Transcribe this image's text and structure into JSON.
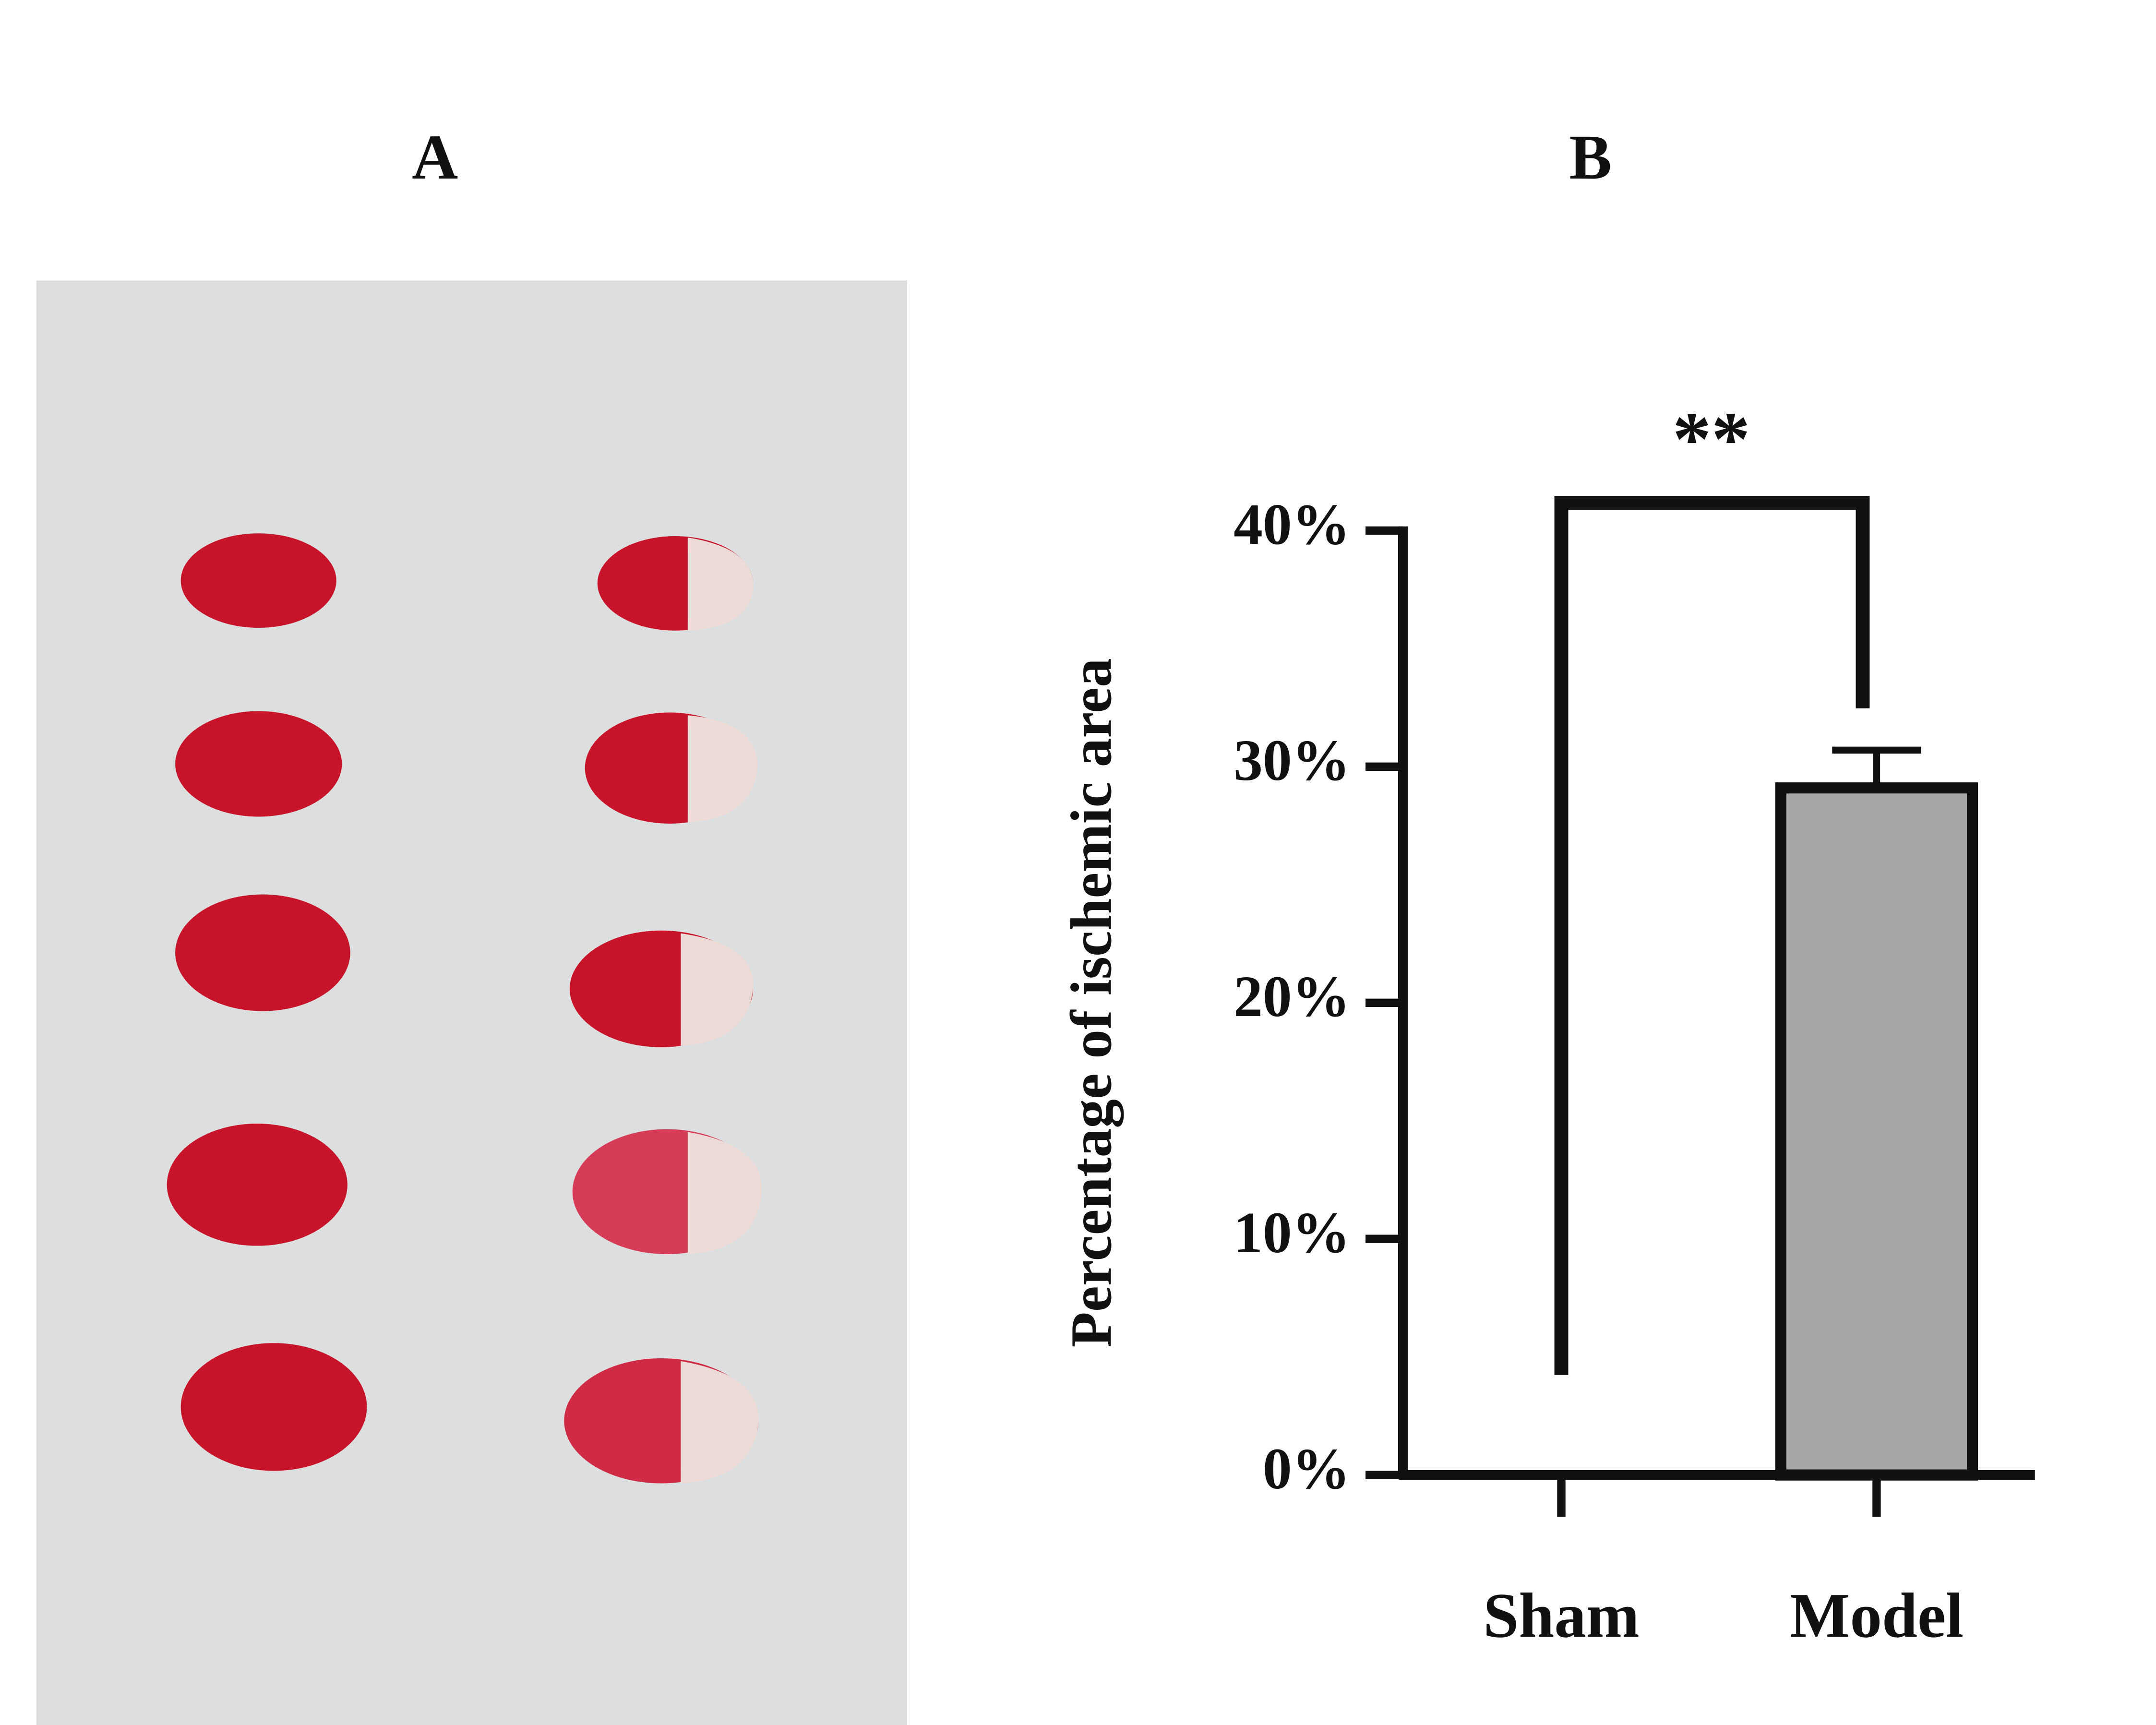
{
  "panel_labels": [
    "A",
    "B"
  ],
  "chart_data": {
    "type": "bar",
    "y_label": "Percentage of ischemic area",
    "categories": [
      "Sham",
      "Model"
    ],
    "values": [
      0,
      29.1
    ],
    "errors": [
      null,
      1.6
    ],
    "color": "#a6a6a7",
    "ylim": [
      0,
      40
    ],
    "yticks": [
      {
        "value": 0,
        "label": "0%"
      },
      {
        "value": 10,
        "label": "10%"
      },
      {
        "value": 20,
        "label": "20%"
      },
      {
        "value": 30,
        "label": "30%"
      },
      {
        "value": 40,
        "label": "40%"
      }
    ],
    "annotation": "**"
  }
}
